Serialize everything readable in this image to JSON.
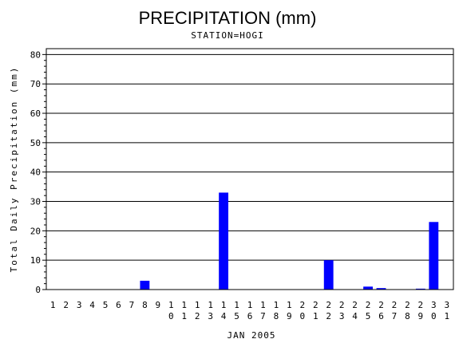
{
  "chart_data": {
    "type": "bar",
    "title": "PRECIPITATION (mm)",
    "subtitle": "STATION=HOGI",
    "xlabel": "JAN 2005",
    "ylabel": "Total Daily Precipitation (mm)",
    "ylim": [
      0,
      82
    ],
    "yticks": [
      0,
      10,
      20,
      30,
      40,
      50,
      60,
      70,
      80
    ],
    "grid": true,
    "bar_color": "#0000ff",
    "categories": [
      "1",
      "2",
      "3",
      "4",
      "5",
      "6",
      "7",
      "8",
      "9",
      "10",
      "11",
      "12",
      "13",
      "14",
      "15",
      "16",
      "17",
      "18",
      "19",
      "20",
      "21",
      "22",
      "23",
      "24",
      "25",
      "26",
      "27",
      "28",
      "29",
      "30",
      "31"
    ],
    "values": [
      0,
      0,
      0,
      0,
      0,
      0,
      0,
      3,
      0,
      0,
      0,
      0,
      0,
      33,
      0,
      0,
      0,
      0,
      0,
      0,
      0,
      10,
      0,
      0,
      1,
      0.5,
      0,
      0,
      0.3,
      23,
      0
    ]
  }
}
